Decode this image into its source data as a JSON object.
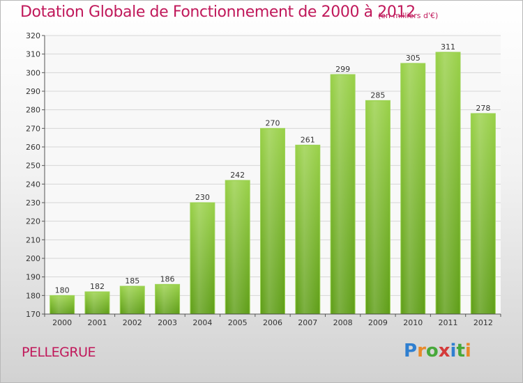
{
  "header": {
    "title": "Dotation Globale de Fonctionnement de 2000 à 2012",
    "unit": "(en milliers d'€)"
  },
  "commune": "PELLEGRUE",
  "logo": {
    "text": "Proxiti",
    "colors": [
      "#2f7fd0",
      "#e8892a",
      "#47a83a",
      "#d43a3a",
      "#2f7fd0",
      "#47a83a",
      "#e8892a"
    ]
  },
  "chart_data": {
    "type": "bar",
    "title": "Dotation Globale de Fonctionnement de 2000 à 2012",
    "subtitle": "(en milliers d'€)",
    "xlabel": "",
    "ylabel": "",
    "categories": [
      "2000",
      "2001",
      "2002",
      "2003",
      "2004",
      "2005",
      "2006",
      "2007",
      "2008",
      "2009",
      "2010",
      "2011",
      "2012"
    ],
    "values": [
      180,
      182,
      185,
      186,
      230,
      242,
      270,
      261,
      299,
      285,
      305,
      311,
      278
    ],
    "data_labels": [
      "180",
      "182",
      "185",
      "186",
      "230",
      "242",
      "270",
      "261",
      "299",
      "285",
      "305",
      "311",
      "278"
    ],
    "ylim": [
      170,
      320
    ],
    "yticks": [
      170,
      180,
      190,
      200,
      210,
      220,
      230,
      240,
      250,
      260,
      270,
      280,
      290,
      300,
      310,
      320
    ],
    "grid": true,
    "bar_color": "#76b82a"
  }
}
